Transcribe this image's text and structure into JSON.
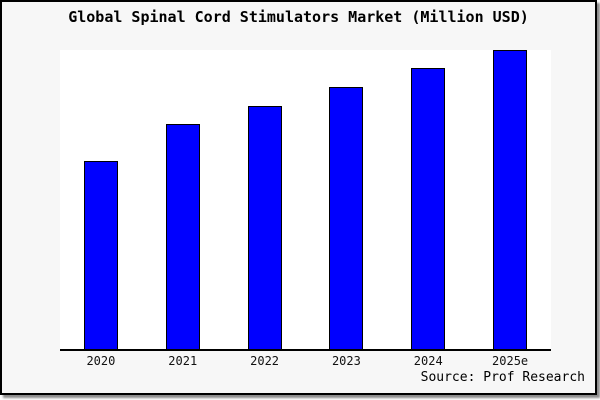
{
  "frame": {
    "background": "#f7f7f7",
    "border_color": "#000000",
    "shadow_color": "#8c8c8c"
  },
  "chart_data": {
    "type": "bar",
    "title": "Global Spinal Cord Stimulators Market (Million USD)",
    "categories": [
      "2020",
      "2021",
      "2022",
      "2023",
      "2024",
      "2025e"
    ],
    "values_relative": [
      62.8,
      75.3,
      81.3,
      87.7,
      94.0,
      100.0
    ],
    "value_note": "chart shows no y-axis ticks or value labels; values estimated relative to 2025e = 100",
    "xlabel": "",
    "ylabel": "",
    "ylim": [
      0,
      100
    ],
    "grid": false,
    "legend_position": "none",
    "bar_fill": "#0000ff",
    "bar_edge": "#000000",
    "plot_background": "#ffffff",
    "axis_color": "#000000"
  },
  "source": {
    "text": "Source: Prof Research"
  }
}
